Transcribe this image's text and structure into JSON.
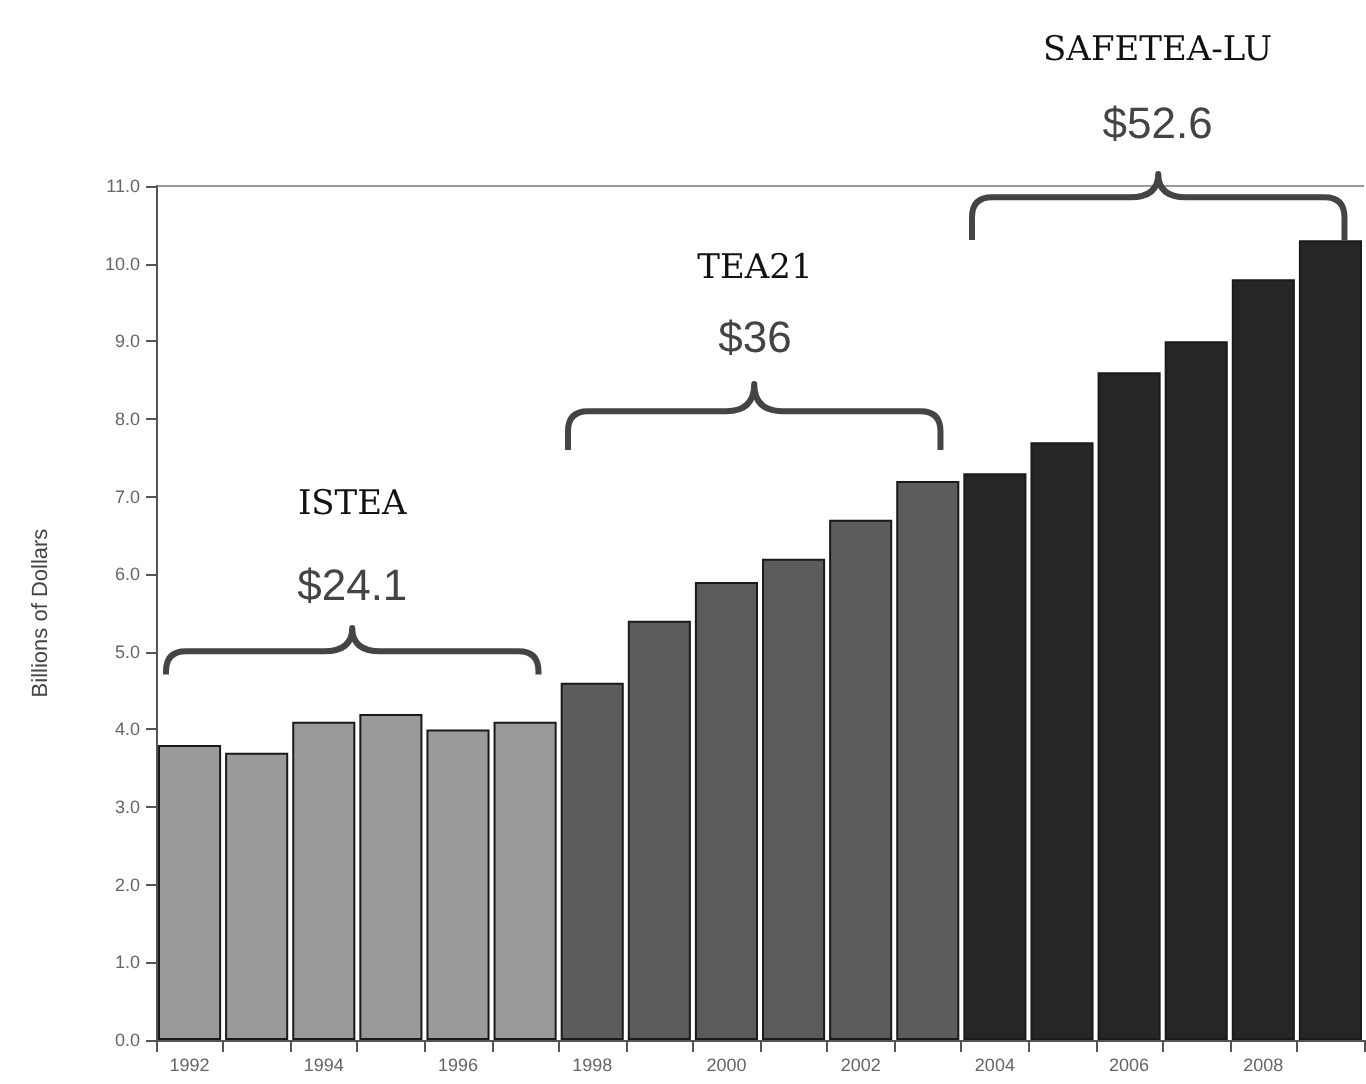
{
  "chart_data": {
    "type": "bar",
    "categories": [
      "1992",
      null,
      "1994",
      null,
      "1996",
      null,
      "1998",
      null,
      "2000",
      null,
      "2002",
      null,
      "2004",
      null,
      "2006",
      null,
      "2008",
      null
    ],
    "values": [
      3.8,
      3.7,
      4.1,
      4.2,
      4.0,
      4.1,
      4.6,
      5.4,
      5.9,
      6.2,
      6.7,
      7.2,
      7.3,
      7.7,
      8.6,
      9.0,
      9.8,
      10.3
    ],
    "colors": [
      "#9a9a9a",
      "#9a9a9a",
      "#9a9a9a",
      "#9a9a9a",
      "#9a9a9a",
      "#9a9a9a",
      "#5c5c5c",
      "#5c5c5c",
      "#5c5c5c",
      "#5c5c5c",
      "#5c5c5c",
      "#5c5c5c",
      "#262626",
      "#262626",
      "#262626",
      "#262626",
      "#262626",
      "#262626"
    ],
    "ylabel": "Billions of Dollars",
    "ylim": [
      0,
      11
    ],
    "yticks": [
      {
        "value": 0,
        "label": "0.0"
      },
      {
        "value": 1,
        "label": "1.0"
      },
      {
        "value": 2,
        "label": "2.0"
      },
      {
        "value": 3,
        "label": "3.0"
      },
      {
        "value": 4,
        "label": "4.0"
      },
      {
        "value": 5,
        "label": "5.0"
      },
      {
        "value": 6,
        "label": "6.0"
      },
      {
        "value": 7,
        "label": "7.0"
      },
      {
        "value": 8,
        "label": "8.0"
      },
      {
        "value": 9,
        "label": "9.0"
      },
      {
        "value": 10,
        "label": "10.0"
      },
      {
        "value": 11,
        "label": "11.0"
      }
    ],
    "annotations": [
      "ISTEA",
      "$24.1",
      "TEA21",
      "$36",
      "SAFETEA-LU",
      "$52.6"
    ],
    "grid": false
  }
}
